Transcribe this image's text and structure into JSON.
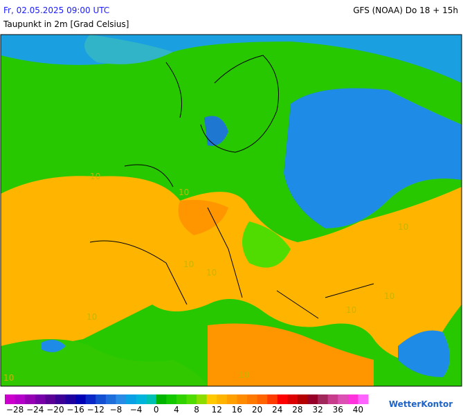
{
  "header": {
    "date": "Fr, 02.05.2025 09:00 UTC",
    "model": "GFS (NOAA) Do 18 + 15h",
    "subtitle": "Taupunkt in 2m [Grad Celsius]"
  },
  "map": {
    "labels": [
      "10",
      "10",
      "10",
      "10",
      "10",
      "10",
      "10",
      "10",
      "10",
      "10"
    ]
  },
  "legend": {
    "range": [
      -30,
      42
    ],
    "colors": [
      "#cc00cc",
      "#b400c8",
      "#9600b4",
      "#7800a8",
      "#5a0096",
      "#3c0096",
      "#1e00a0",
      "#0000b4",
      "#0a28c8",
      "#1450d2",
      "#1e6edc",
      "#288ce6",
      "#0aa0e6",
      "#00b4dc",
      "#00c0b4",
      "#00b400",
      "#14c800",
      "#32d200",
      "#50dc00",
      "#8cdc00",
      "#ffc800",
      "#ffb400",
      "#ffa000",
      "#ff8c00",
      "#ff7800",
      "#ff6400",
      "#ff3c00",
      "#ff0000",
      "#dc0000",
      "#b40000",
      "#960028",
      "#a0285a",
      "#c83c8c",
      "#dc50b4",
      "#ff32dc",
      "#ff64ff"
    ],
    "ticks": [
      {
        "value": -28,
        "label": "−28"
      },
      {
        "value": -24,
        "label": "−24"
      },
      {
        "value": -20,
        "label": "−20"
      },
      {
        "value": -16,
        "label": "−16"
      },
      {
        "value": -12,
        "label": "−12"
      },
      {
        "value": -8,
        "label": "−8"
      },
      {
        "value": -4,
        "label": "−4"
      },
      0,
      4,
      8,
      12,
      16,
      20,
      24,
      28,
      32,
      36,
      40
    ]
  },
  "logo": "WetterKontor"
}
